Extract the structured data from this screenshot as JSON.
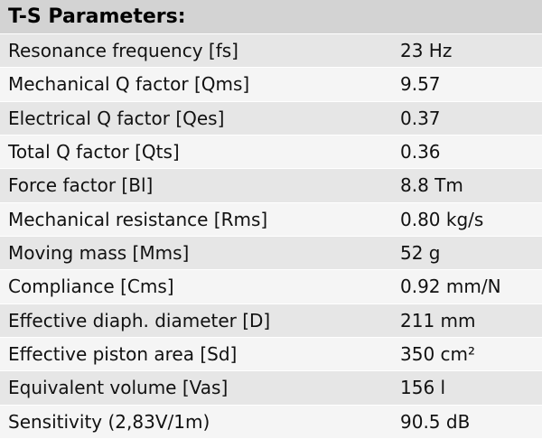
{
  "title": "T-S Parameters:",
  "rows": [
    {
      "parameter": "Resonance frequency [fs]",
      "value": "23 Hz"
    },
    {
      "parameter": "Mechanical Q factor [Qms]",
      "value": "9.57"
    },
    {
      "parameter": "Electrical Q factor [Qes]",
      "value": "0.37"
    },
    {
      "parameter": "Total Q factor [Qts]",
      "value": "0.36"
    },
    {
      "parameter": "Force factor [Bl]",
      "value": "8.8 Tm"
    },
    {
      "parameter": "Mechanical resistance [Rms]",
      "value": "0.80 kg/s"
    },
    {
      "parameter": "Moving mass [Mms]",
      "value": "52 g"
    },
    {
      "parameter": "Compliance [Cms]",
      "value": "0.92 mm/N"
    },
    {
      "parameter": "Effective diaph. diameter [D]",
      "value": "211 mm"
    },
    {
      "parameter": "Effective piston area [Sd]",
      "value": "350 cm²"
    },
    {
      "parameter": "Equivalent volume [Vas]",
      "value": "156 l"
    },
    {
      "parameter": "Sensitivity (2,83V/1m)",
      "value": "90.5 dB"
    }
  ]
}
